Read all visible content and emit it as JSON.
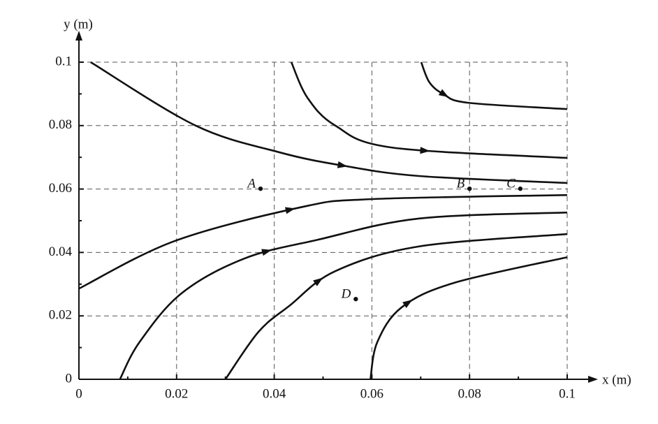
{
  "chart_data": {
    "type": "streamline",
    "xlabel": "x (m)",
    "ylabel": "y (m)",
    "xlim": [
      0,
      0.1
    ],
    "ylim": [
      0,
      0.1
    ],
    "xticks": [
      0,
      0.02,
      0.04,
      0.06,
      0.08,
      0.1
    ],
    "yticks": [
      0,
      0.02,
      0.04,
      0.06,
      0.08,
      0.1
    ],
    "grid": true,
    "color": "#111111",
    "series": [
      {
        "x": [
          0.0024,
          0.0239,
          0.041,
          0.054,
          0.0697,
          0.1
        ],
        "values": [
          0.1,
          0.08,
          0.0716,
          0.0674,
          0.0641,
          0.0619
        ]
      },
      {
        "x": [
          0.0435,
          0.0468,
          0.0525,
          0.064,
          0.1
        ],
        "values": [
          0.1,
          0.0888,
          0.08,
          0.0731,
          0.0698
        ]
      },
      {
        "x": [
          0.0701,
          0.0718,
          0.0747,
          0.0797,
          0.1
        ],
        "values": [
          0.1,
          0.0936,
          0.0899,
          0.0872,
          0.0852
        ]
      },
      {
        "x": [
          0,
          0.0196,
          0.0453,
          0.0597,
          0.1
        ],
        "values": [
          0.0286,
          0.0436,
          0.0542,
          0.0568,
          0.0581
        ]
      },
      {
        "x": [
          0.0084,
          0.0124,
          0.021,
          0.0339,
          0.0489,
          0.0697,
          0.1
        ],
        "values": [
          0,
          0.0117,
          0.0271,
          0.0381,
          0.044,
          0.0507,
          0.0526
        ]
      },
      {
        "x": [
          0.03,
          0.0368,
          0.0432,
          0.0525,
          0.0697,
          0.1
        ],
        "values": [
          0,
          0.015,
          0.0233,
          0.0341,
          0.0419,
          0.0458
        ]
      },
      {
        "x": [
          0.0597,
          0.0611,
          0.0661,
          0.0768,
          0.1
        ],
        "values": [
          0,
          0.0117,
          0.0227,
          0.0304,
          0.0385
        ]
      }
    ],
    "points": [
      {
        "label": "A",
        "x": 0.0372,
        "y": 0.0601
      },
      {
        "label": "B",
        "x": 0.08,
        "y": 0.0601
      },
      {
        "label": "C",
        "x": 0.0904,
        "y": 0.0601
      },
      {
        "label": "D",
        "x": 0.0567,
        "y": 0.0253
      }
    ]
  }
}
